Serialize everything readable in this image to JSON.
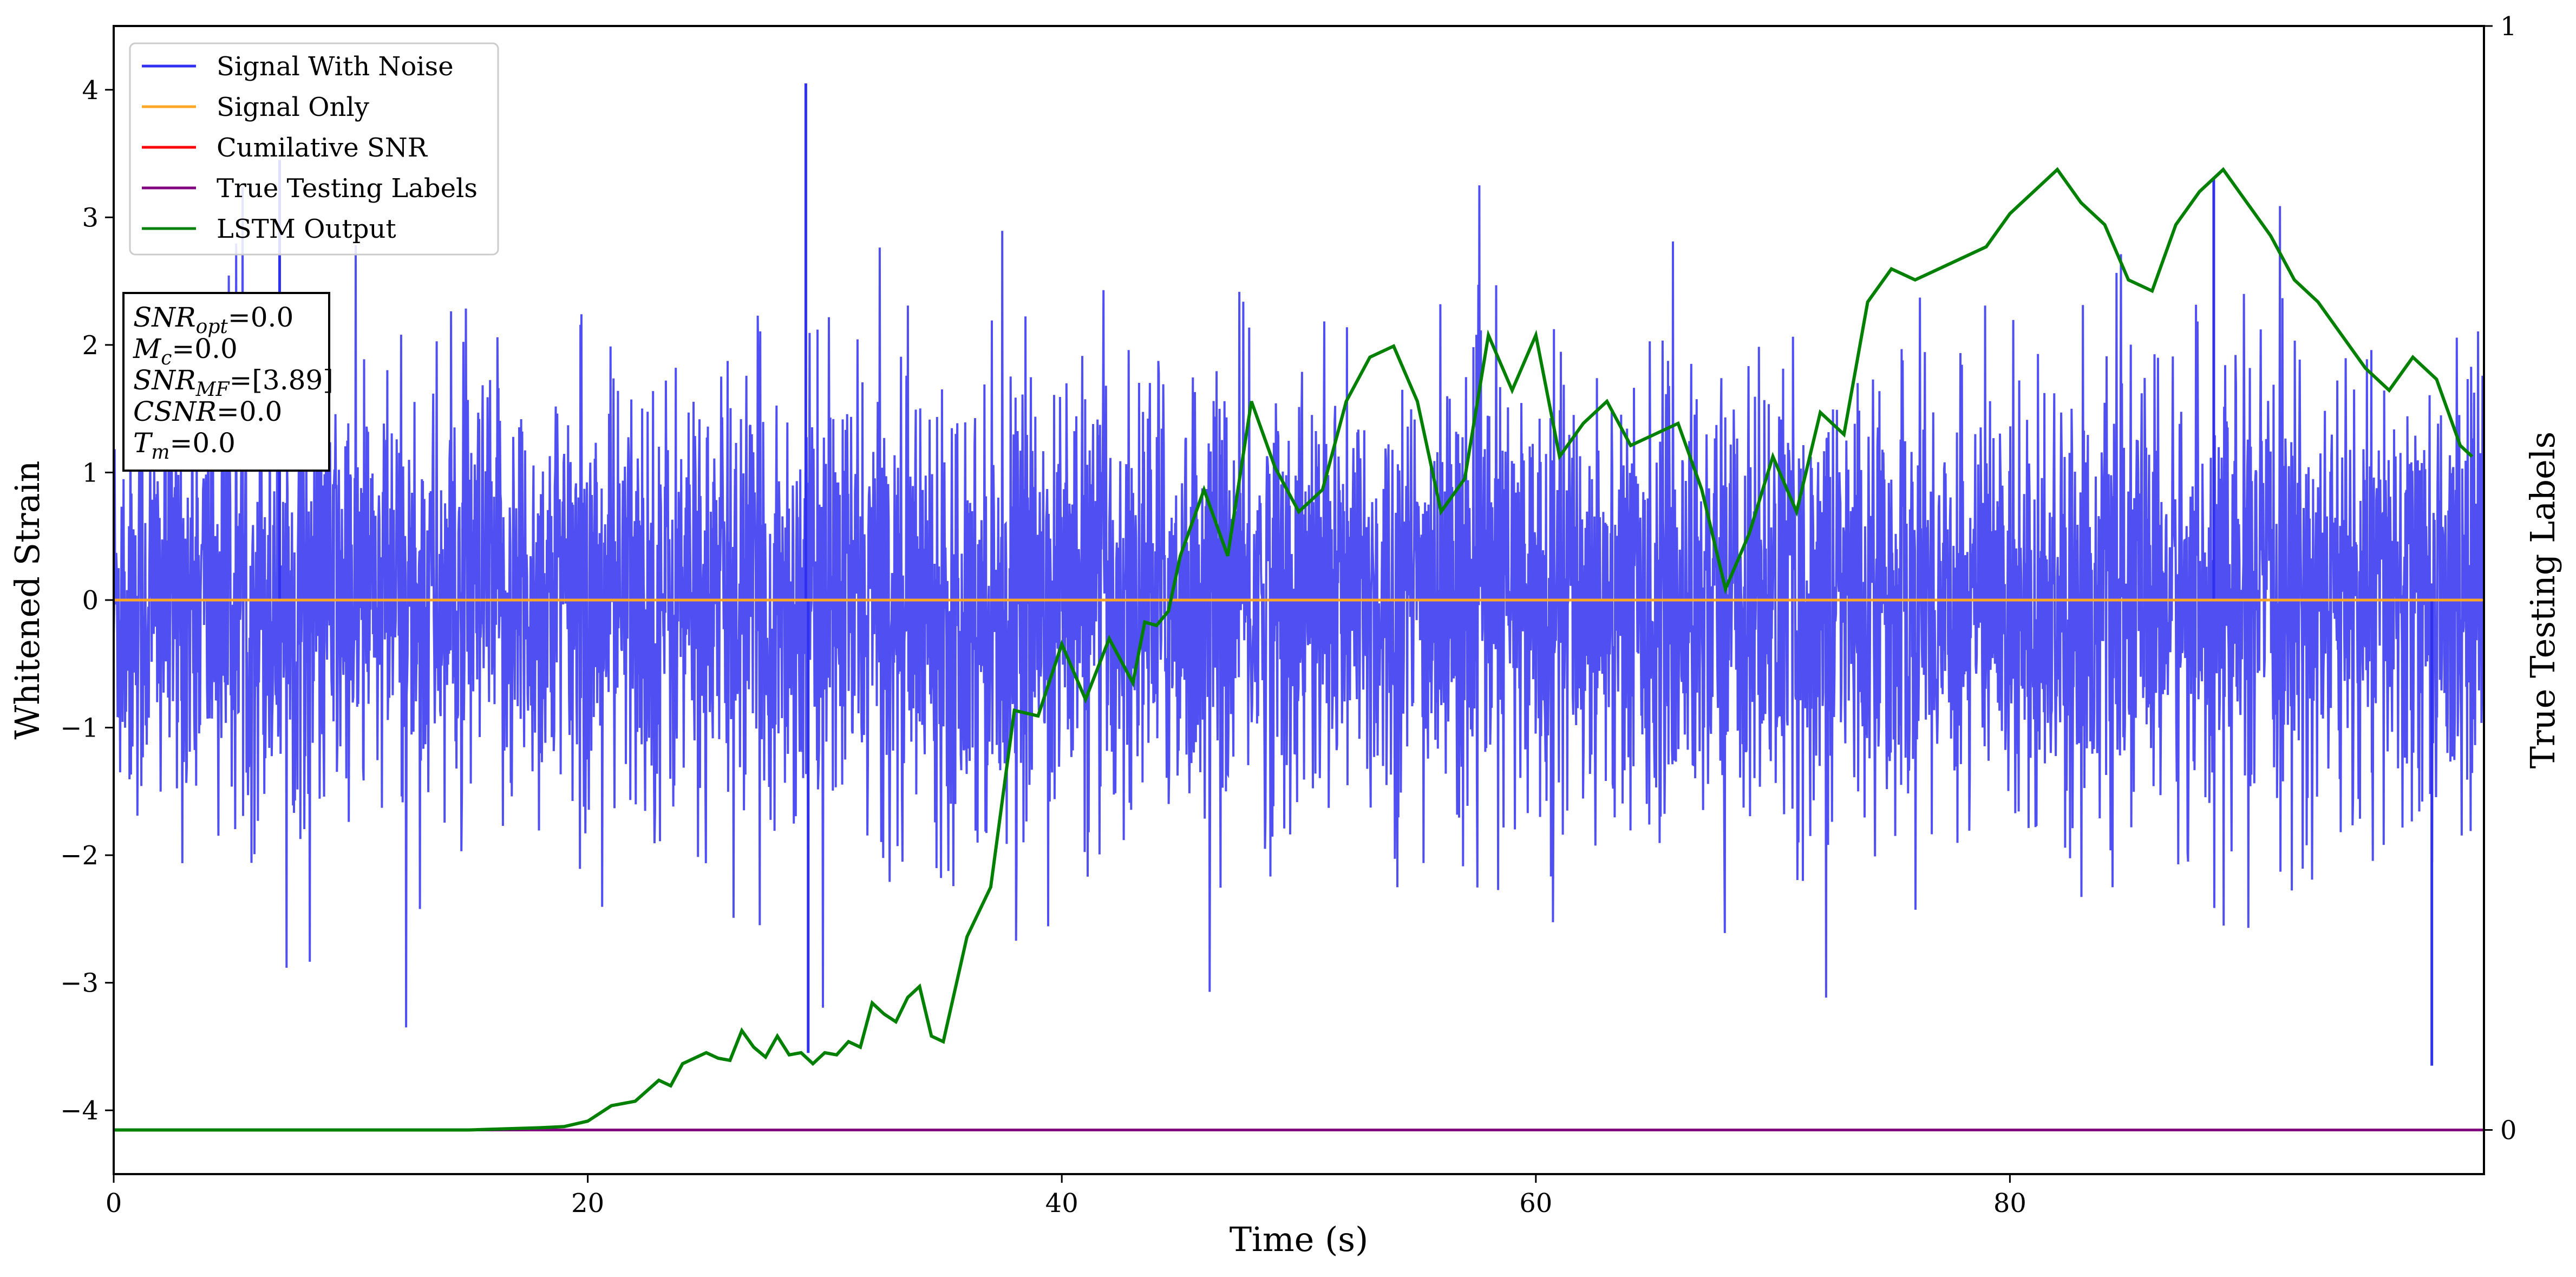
{
  "chart_data": {
    "type": "line",
    "xlabel": "Time (s)",
    "ylabel_left": "Whitened Strain",
    "ylabel_right": "True Testing Labels",
    "xlim": [
      0,
      100
    ],
    "ylim_left": [
      -4.5,
      4.5
    ],
    "ylim_right": [
      -0.04,
      1.0
    ],
    "x_ticks": [
      0,
      20,
      40,
      60,
      80
    ],
    "y_ticks_left": [
      -4,
      -3,
      -2,
      -1,
      0,
      1,
      2,
      3,
      4
    ],
    "y_ticks_right": [
      0,
      1
    ],
    "grid": false,
    "legend_position": "top-left",
    "legend": [
      {
        "name": "Signal With Noise",
        "color": "#3030f0"
      },
      {
        "name": "Signal Only",
        "color": "#ffa726"
      },
      {
        "name": "Cumilative SNR",
        "color": "#ff0000"
      },
      {
        "name": "True Testing Labels",
        "color": "#800080"
      },
      {
        "name": "LSTM Output",
        "color": "#008000"
      }
    ],
    "annotation": [
      {
        "key": "snr_opt",
        "base": "SNR",
        "sub": "opt",
        "value": "=0.0"
      },
      {
        "key": "mc",
        "base": "M",
        "sub": "c",
        "value": "=0.0"
      },
      {
        "key": "snr_mf",
        "base": "SNR",
        "sub": "MF",
        "value": "=[3.89]"
      },
      {
        "key": "csnr",
        "base": "CSNR",
        "sub": "",
        "value": "=0.0"
      },
      {
        "key": "tm",
        "base": "T",
        "sub": "m",
        "value": "=0.0"
      }
    ],
    "series": [
      {
        "name": "Signal With Noise",
        "axis": "left",
        "color": "#3030f0",
        "noise_description": "dense noise trace, typical range about -1.6 to 1.6, spikes up to 4.05 and down to -3.65",
        "x_range": [
          0,
          100
        ],
        "peak_max": 4.05,
        "peak_min": -3.65
      },
      {
        "name": "Signal Only",
        "axis": "left",
        "color": "#ffa726",
        "x": [
          0,
          100
        ],
        "y": [
          0,
          0
        ]
      },
      {
        "name": "True Testing Labels",
        "axis": "right",
        "color": "#800080",
        "x": [
          0,
          100
        ],
        "y": [
          0,
          0
        ]
      },
      {
        "name": "LSTM Output",
        "axis": "right",
        "color": "#008000",
        "x": [
          0,
          15,
          18,
          19,
          20,
          21,
          22,
          23,
          23.5,
          24,
          25,
          25.5,
          26,
          26.5,
          27,
          27.5,
          28,
          28.5,
          29,
          29.5,
          30,
          30.5,
          31,
          31.5,
          32,
          32.5,
          33,
          33.5,
          34,
          34.5,
          35,
          36,
          37,
          38,
          39,
          40,
          41,
          42,
          43,
          43.5,
          44,
          44.5,
          45,
          46,
          47,
          48,
          49,
          50,
          51,
          52,
          53,
          54,
          55,
          56,
          57,
          58,
          59,
          60,
          61,
          62,
          63,
          64,
          65,
          66,
          67,
          68,
          69,
          70,
          71,
          72,
          73,
          74,
          75,
          76,
          77,
          78,
          79,
          80,
          81,
          82,
          83,
          84,
          85,
          86,
          87,
          88,
          89,
          90,
          91,
          92,
          93,
          94,
          95,
          96,
          97,
          98,
          99,
          99.5
        ],
        "y": [
          0,
          0,
          0.002,
          0.003,
          0.008,
          0.022,
          0.026,
          0.045,
          0.04,
          0.06,
          0.07,
          0.065,
          0.063,
          0.09,
          0.075,
          0.066,
          0.085,
          0.068,
          0.07,
          0.06,
          0.07,
          0.068,
          0.08,
          0.075,
          0.115,
          0.105,
          0.098,
          0.12,
          0.13,
          0.085,
          0.08,
          0.175,
          0.22,
          0.38,
          0.375,
          0.44,
          0.39,
          0.445,
          0.405,
          0.46,
          0.457,
          0.47,
          0.52,
          0.58,
          0.52,
          0.66,
          0.6,
          0.56,
          0.58,
          0.66,
          0.7,
          0.71,
          0.66,
          0.56,
          0.59,
          0.72,
          0.67,
          0.72,
          0.61,
          0.64,
          0.66,
          0.62,
          0.63,
          0.64,
          0.58,
          0.49,
          0.54,
          0.61,
          0.56,
          0.65,
          0.63,
          0.75,
          0.78,
          0.77,
          0.78,
          0.79,
          0.8,
          0.83,
          0.85,
          0.87,
          0.84,
          0.82,
          0.77,
          0.76,
          0.82,
          0.85,
          0.87,
          0.84,
          0.81,
          0.77,
          0.75,
          0.72,
          0.69,
          0.67,
          0.7,
          0.68,
          0.62,
          0.61
        ]
      }
    ]
  }
}
